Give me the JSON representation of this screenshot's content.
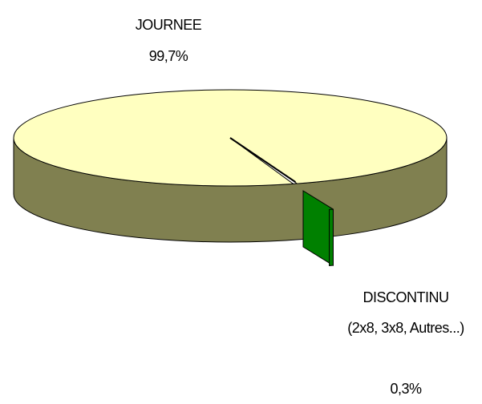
{
  "chart_data": {
    "type": "pie",
    "categories": [
      "JOURNEE",
      "DISCONTINU (2x8, 3x8, Autres...)"
    ],
    "values": [
      99.7,
      0.3
    ],
    "value_labels": [
      "99,7%",
      "0,3%"
    ],
    "colors": [
      "#ffffc0",
      "#008000"
    ],
    "side_colors": [
      "#808050",
      "#006000"
    ]
  }
}
